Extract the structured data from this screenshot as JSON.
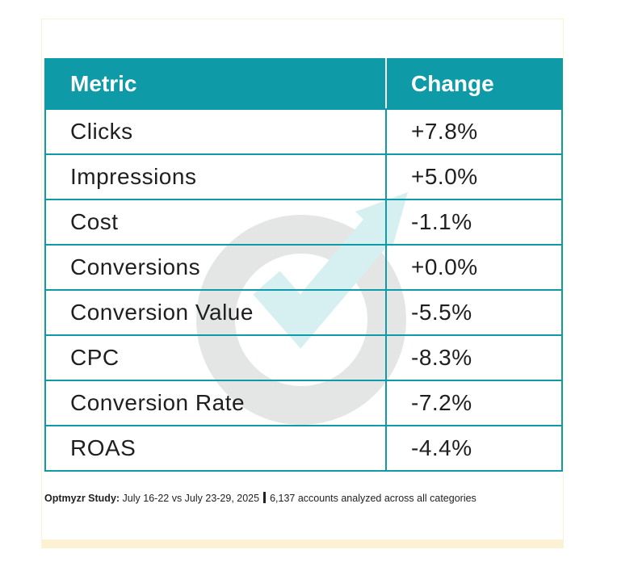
{
  "chart_data": {
    "type": "table",
    "columns": [
      "Metric",
      "Change"
    ],
    "rows": [
      {
        "metric": "Clicks",
        "change": "+7.8%"
      },
      {
        "metric": "Impressions",
        "change": "+5.0%"
      },
      {
        "metric": "Cost",
        "change": "-1.1%"
      },
      {
        "metric": "Conversions",
        "change": "+0.0%"
      },
      {
        "metric": "Conversion Value",
        "change": "-5.5%"
      },
      {
        "metric": "CPC",
        "change": "-8.3%"
      },
      {
        "metric": "Conversion Rate",
        "change": "-7.2%"
      },
      {
        "metric": "ROAS",
        "change": "-4.4%"
      }
    ]
  },
  "footnote": {
    "label": "Optmyzr Study:",
    "dates": "July 16-22 vs July 23-29, 2025",
    "accounts": "6,137 accounts analyzed across all categories"
  },
  "colors": {
    "header_bg": "#0e9aa7",
    "border": "#0e9aa7",
    "watermark_ring": "#e4e6e6",
    "watermark_arrow": "#d6eff0"
  },
  "watermark_icon": "optmyzr-logo-icon"
}
